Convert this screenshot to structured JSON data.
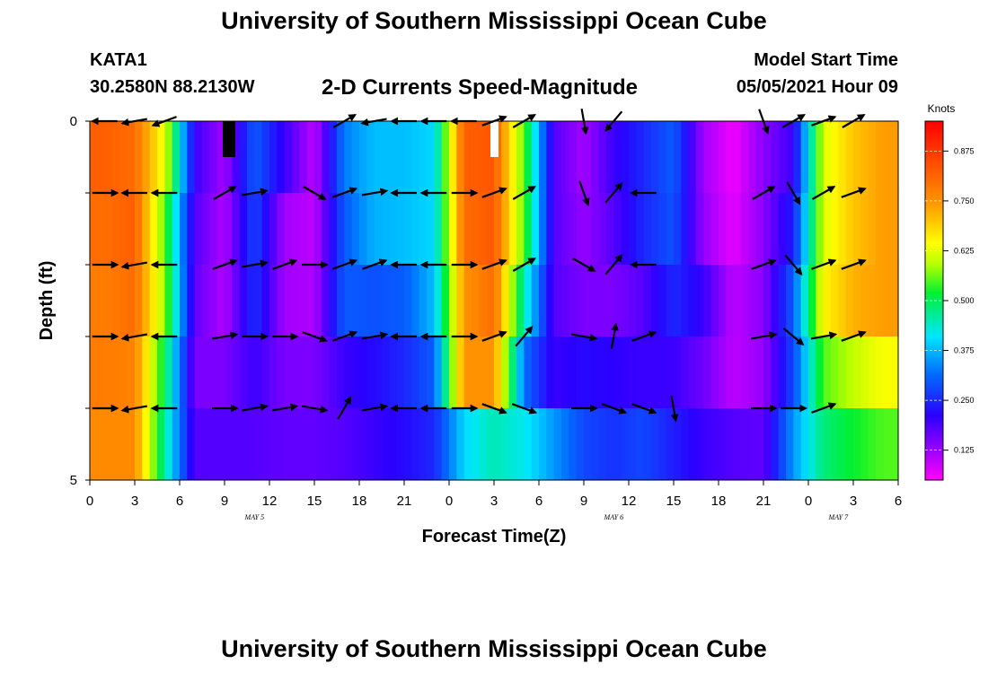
{
  "header": {
    "title": "University of Southern Mississippi Ocean Cube",
    "station": "KATA1",
    "coordinates": "30.2580N  88.2130W",
    "subtitle": "2-D Currents Speed-Magnitude",
    "model_start_label": "Model Start Time",
    "model_start_value": "05/05/2021 Hour 09"
  },
  "footer": {
    "title": "University of Southern Mississippi Ocean Cube"
  },
  "chart_data": {
    "type": "heatmap",
    "title": "2-D Currents Speed-Magnitude",
    "xlabel": "Forecast Time(Z)",
    "ylabel": "Depth (ft)",
    "x_tick_labels": [
      "0",
      "3",
      "6",
      "9",
      "12",
      "15",
      "18",
      "21",
      "0",
      "3",
      "6",
      "9",
      "12",
      "15",
      "18",
      "21",
      "0",
      "3",
      "6"
    ],
    "date_labels": [
      {
        "label": "MAY 5",
        "at_hour": 11
      },
      {
        "label": "MAY 6",
        "at_hour": 35
      },
      {
        "label": "MAY 7",
        "at_hour": 50
      }
    ],
    "x_range_hours": [
      0,
      54
    ],
    "y_range": [
      0,
      5
    ],
    "y_tick_labels": [
      "0",
      "5"
    ],
    "colorbar": {
      "unit": "Knots",
      "range": [
        0.05,
        0.95
      ],
      "tick_values": [
        0.125,
        0.25,
        0.375,
        0.5,
        0.625,
        0.75,
        0.875
      ],
      "tick_labels": [
        "0.125",
        "0.250",
        "0.375",
        "0.500",
        "0.625",
        "0.750",
        "0.875"
      ]
    },
    "rows": 5,
    "cols": 27,
    "hour_step": 2,
    "speed_knots": [
      [
        0.82,
        0.8,
        0.63,
        0.2,
        0.12,
        0.3,
        0.2,
        0.1,
        0.33,
        0.38,
        0.38,
        0.4,
        0.82,
        0.83,
        0.55,
        0.18,
        0.12,
        0.2,
        0.25,
        0.3,
        0.12,
        0.06,
        0.14,
        0.2,
        0.62,
        0.7,
        0.74
      ],
      [
        0.8,
        0.82,
        0.55,
        0.18,
        0.11,
        0.28,
        0.12,
        0.1,
        0.3,
        0.37,
        0.38,
        0.4,
        0.8,
        0.83,
        0.55,
        0.18,
        0.13,
        0.18,
        0.25,
        0.29,
        0.13,
        0.07,
        0.14,
        0.24,
        0.62,
        0.7,
        0.74
      ],
      [
        0.78,
        0.8,
        0.58,
        0.17,
        0.11,
        0.26,
        0.12,
        0.11,
        0.3,
        0.29,
        0.3,
        0.38,
        0.75,
        0.8,
        0.45,
        0.18,
        0.15,
        0.15,
        0.18,
        0.25,
        0.2,
        0.1,
        0.14,
        0.3,
        0.65,
        0.72,
        0.74
      ],
      [
        0.78,
        0.77,
        0.5,
        0.15,
        0.15,
        0.2,
        0.15,
        0.15,
        0.2,
        0.22,
        0.25,
        0.3,
        0.75,
        0.75,
        0.32,
        0.2,
        0.22,
        0.21,
        0.2,
        0.2,
        0.16,
        0.1,
        0.13,
        0.28,
        0.55,
        0.6,
        0.64
      ],
      [
        0.76,
        0.76,
        0.46,
        0.18,
        0.18,
        0.18,
        0.17,
        0.17,
        0.18,
        0.2,
        0.22,
        0.25,
        0.4,
        0.45,
        0.42,
        0.35,
        0.28,
        0.26,
        0.28,
        0.24,
        0.2,
        0.18,
        0.17,
        0.35,
        0.48,
        0.52,
        0.55
      ]
    ],
    "arrows_deg": [
      [
        180,
        190,
        200,
        null,
        null,
        null,
        null,
        null,
        30,
        190,
        180,
        180,
        180,
        20,
        30,
        null,
        -80,
        230,
        null,
        null,
        null,
        null,
        -70,
        30,
        20,
        30,
        null
      ],
      [
        0,
        180,
        180,
        null,
        30,
        10,
        null,
        -30,
        20,
        10,
        180,
        180,
        0,
        20,
        30,
        null,
        -70,
        50,
        180,
        null,
        null,
        null,
        30,
        -60,
        30,
        20,
        null
      ],
      [
        0,
        190,
        180,
        null,
        20,
        10,
        20,
        0,
        20,
        20,
        180,
        180,
        0,
        20,
        30,
        null,
        -30,
        50,
        180,
        null,
        null,
        null,
        20,
        -50,
        20,
        20,
        null
      ],
      [
        0,
        190,
        180,
        null,
        10,
        0,
        0,
        -20,
        20,
        10,
        180,
        180,
        0,
        20,
        50,
        null,
        -10,
        80,
        20,
        null,
        null,
        null,
        10,
        -40,
        10,
        20,
        null
      ],
      [
        0,
        190,
        180,
        null,
        0,
        10,
        10,
        -10,
        60,
        10,
        180,
        180,
        0,
        -20,
        -20,
        null,
        0,
        -20,
        -20,
        -80,
        null,
        null,
        0,
        0,
        20,
        null,
        null
      ]
    ]
  }
}
